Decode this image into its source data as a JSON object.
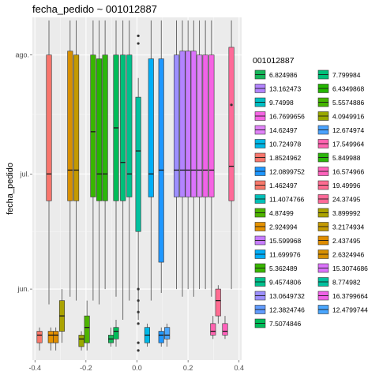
{
  "chart_data": {
    "type": "boxplot",
    "title": "fecha_pedido ~ 001012887",
    "xlabel": "",
    "ylabel": "fecha_pedido",
    "x_ticks": [
      "-0.4",
      "-0.2",
      "0.0",
      "0.2",
      "0.4"
    ],
    "x_tick_values": [
      -0.4,
      -0.2,
      0.0,
      0.2,
      0.4
    ],
    "y_ticks": [
      "jun.",
      "jul.",
      "ago."
    ],
    "y_tick_values": [
      0,
      30,
      61
    ],
    "xlim": [
      -0.41,
      0.41
    ],
    "ylim": [
      -18.5,
      70.8
    ],
    "grid": true,
    "legend_title": "001012887",
    "legend_position": "right",
    "legend_columns": [
      [
        {
          "label": "6.824986",
          "color": "#16b65a"
        },
        {
          "label": "13.162473",
          "color": "#b384ff"
        },
        {
          "label": "9.74998",
          "color": "#00bfc4"
        },
        {
          "label": "16.7699656",
          "color": "#f564e3"
        },
        {
          "label": "14.62497",
          "color": "#e083f8"
        },
        {
          "label": "10.724978",
          "color": "#00b8e7"
        },
        {
          "label": "1.8524962",
          "color": "#f8766d"
        },
        {
          "label": "12.0899752",
          "color": "#1f97ff"
        },
        {
          "label": "1.462497",
          "color": "#f8786a"
        },
        {
          "label": "11.4074766",
          "color": "#00c0b8"
        },
        {
          "label": "4.87499",
          "color": "#4eb400"
        },
        {
          "label": "2.924994",
          "color": "#e59200"
        },
        {
          "label": "15.599968",
          "color": "#c77cff"
        },
        {
          "label": "11.699976",
          "color": "#00aef8"
        },
        {
          "label": "5.362489",
          "color": "#39b600"
        },
        {
          "label": "9.4574806",
          "color": "#00c08c"
        },
        {
          "label": "13.0649732",
          "color": "#9d8fff"
        },
        {
          "label": "12.3824746",
          "color": "#619cff"
        },
        {
          "label": "7.5074846",
          "color": "#00bc59"
        }
      ],
      [
        {
          "label": "7.799984",
          "color": "#00c07a"
        },
        {
          "label": "6.4349868",
          "color": "#24b700"
        },
        {
          "label": "5.5574886",
          "color": "#45b500"
        },
        {
          "label": "4.0949916",
          "color": "#99a800"
        },
        {
          "label": "12.674974",
          "color": "#4ba3ff"
        },
        {
          "label": "17.549964",
          "color": "#ff64b0"
        },
        {
          "label": "5.849988",
          "color": "#2cb60b"
        },
        {
          "label": "16.574966",
          "color": "#ff62bc"
        },
        {
          "label": "19.49996",
          "color": "#ff6c91"
        },
        {
          "label": "24.37495",
          "color": "#ff6a98"
        },
        {
          "label": "3.899992",
          "color": "#aba300"
        },
        {
          "label": "3.2174934",
          "color": "#c49a00"
        },
        {
          "label": "2.437495",
          "color": "#de8c00"
        },
        {
          "label": "2.6324946",
          "color": "#d89000"
        },
        {
          "label": "15.3074686",
          "color": "#db72fb"
        },
        {
          "label": "8.774982",
          "color": "#00c19f"
        },
        {
          "label": "16.3799664",
          "color": "#f062e7"
        },
        {
          "label": "12.4799744",
          "color": "#4aa6ff"
        }
      ]
    ],
    "series": [
      {
        "x": -0.345,
        "color": "#f8766d",
        "min": -4,
        "q1": 23,
        "median": 30,
        "q3": 61,
        "max": 70,
        "outliers": []
      },
      {
        "x": -0.262,
        "color": "#d89000",
        "min": -2,
        "q1": 23,
        "median": 31,
        "q3": 62,
        "max": 70,
        "outliers": []
      },
      {
        "x": -0.238,
        "color": "#c49a00",
        "min": -3,
        "q1": 23,
        "median": 31,
        "q3": 61,
        "max": 70,
        "outliers": []
      },
      {
        "x": -0.172,
        "color": "#39b600",
        "min": -3,
        "q1": 24,
        "median": 41,
        "q3": 61,
        "max": 70,
        "outliers": []
      },
      {
        "x": -0.148,
        "color": "#24b700",
        "min": -4,
        "q1": 23,
        "median": 30,
        "q3": 60,
        "max": 70,
        "outliers": []
      },
      {
        "x": -0.125,
        "color": "#2cb60b",
        "min": 0,
        "q1": 23,
        "median": 30,
        "q3": 61,
        "max": 70,
        "outliers": []
      },
      {
        "x": -0.082,
        "color": "#00bc59",
        "min": -2,
        "q1": 23,
        "median": 42,
        "q3": 61,
        "max": 70,
        "outliers": []
      },
      {
        "x": -0.055,
        "color": "#00c07a",
        "min": -8,
        "q1": 23,
        "median": 33,
        "q3": 61,
        "max": 70,
        "outliers": []
      },
      {
        "x": -0.03,
        "color": "#00c08c",
        "min": -3,
        "q1": 24,
        "median": 30,
        "q3": 61,
        "max": 70,
        "outliers": []
      },
      {
        "x": 0.005,
        "color": "#00c19f",
        "min": -8,
        "q1": 15,
        "median": 36,
        "q3": 50,
        "max": 55,
        "outliers": [
          66,
          64,
          0,
          -3,
          -6,
          -9,
          -14,
          -16
        ]
      },
      {
        "x": 0.055,
        "color": "#00aef8",
        "min": -3,
        "q1": 24,
        "median": 30,
        "q3": 60,
        "max": 70,
        "outliers": []
      },
      {
        "x": 0.095,
        "color": "#1f97ff",
        "min": -1,
        "q1": 7,
        "median": 31,
        "q3": 60,
        "max": 70,
        "outliers": []
      },
      {
        "x": 0.155,
        "color": "#9d8fff",
        "min": 0,
        "q1": 24,
        "median": 31,
        "q3": 61,
        "max": 70,
        "outliers": []
      },
      {
        "x": 0.178,
        "color": "#b384ff",
        "min": -2,
        "q1": 24,
        "median": 31,
        "q3": 62,
        "max": 70,
        "outliers": []
      },
      {
        "x": 0.2,
        "color": "#c77cff",
        "min": 0,
        "q1": 24,
        "median": 31,
        "q3": 62,
        "max": 70,
        "outliers": []
      },
      {
        "x": 0.222,
        "color": "#db72fb",
        "min": -2,
        "q1": 24,
        "median": 31,
        "q3": 62,
        "max": 70,
        "outliers": []
      },
      {
        "x": 0.245,
        "color": "#e083f8",
        "min": 0,
        "q1": 24,
        "median": 31,
        "q3": 61,
        "max": 70,
        "outliers": []
      },
      {
        "x": 0.268,
        "color": "#f062e7",
        "min": 0,
        "q1": 24,
        "median": 31,
        "q3": 61,
        "max": 70,
        "outliers": []
      },
      {
        "x": 0.292,
        "color": "#f564e3",
        "min": -2,
        "q1": 24,
        "median": 31,
        "q3": 61,
        "max": 70,
        "outliers": []
      },
      {
        "x": 0.37,
        "color": "#ff6a98",
        "min": 0,
        "q1": 23,
        "median": 32,
        "q3": 63,
        "max": 70,
        "outliers": [
          48
        ]
      },
      {
        "x": -0.382,
        "color": "#f8786a",
        "min": -16,
        "q1": -14,
        "median": -12,
        "q3": -11,
        "max": -10,
        "outliers": []
      },
      {
        "x": -0.338,
        "color": "#e59200",
        "min": -16,
        "q1": -14,
        "median": -12,
        "q3": -11,
        "max": -10,
        "outliers": []
      },
      {
        "x": -0.318,
        "color": "#de8c00",
        "min": -16,
        "q1": -14,
        "median": -12,
        "q3": -11,
        "max": -10,
        "outliers": []
      },
      {
        "x": -0.294,
        "color": "#aba300",
        "min": -14,
        "q1": -11,
        "median": -7,
        "q3": -3,
        "max": 0,
        "outliers": []
      },
      {
        "x": -0.218,
        "color": "#99a800",
        "min": -16,
        "q1": -15,
        "median": -13,
        "q3": -12,
        "max": -11,
        "outliers": []
      },
      {
        "x": -0.196,
        "color": "#4eb400",
        "min": -16,
        "q1": -14,
        "median": -10,
        "q3": -7,
        "max": -3,
        "outliers": []
      },
      {
        "x": -0.102,
        "color": "#16b65a",
        "min": -15,
        "q1": -14,
        "median": -13,
        "q3": -12,
        "max": -10,
        "outliers": []
      },
      {
        "x": -0.082,
        "color": "#00bc59",
        "min": -15,
        "q1": -13,
        "median": -11,
        "q3": -10,
        "max": -8,
        "outliers": []
      },
      {
        "x": 0.04,
        "color": "#00b8e7",
        "min": -15,
        "q1": -14,
        "median": -12,
        "q3": -10,
        "max": -9,
        "outliers": []
      },
      {
        "x": 0.095,
        "color": "#1f97ff",
        "min": -15,
        "q1": -14,
        "median": -12,
        "q3": -11,
        "max": -10,
        "outliers": []
      },
      {
        "x": 0.118,
        "color": "#4aa6ff",
        "min": -15,
        "q1": -13,
        "median": -12,
        "q3": -10,
        "max": -9,
        "outliers": []
      },
      {
        "x": 0.298,
        "color": "#ff64b0",
        "min": -13,
        "q1": -12,
        "median": -11,
        "q3": -9,
        "max": -7,
        "outliers": []
      },
      {
        "x": 0.318,
        "color": "#ff6c91",
        "min": -9,
        "q1": -7,
        "median": -3,
        "q3": 0,
        "max": 1,
        "outliers": []
      },
      {
        "x": 0.345,
        "color": "#ff62bc",
        "min": -13,
        "q1": -12,
        "median": -11,
        "q3": -9,
        "max": -7,
        "outliers": []
      }
    ]
  }
}
